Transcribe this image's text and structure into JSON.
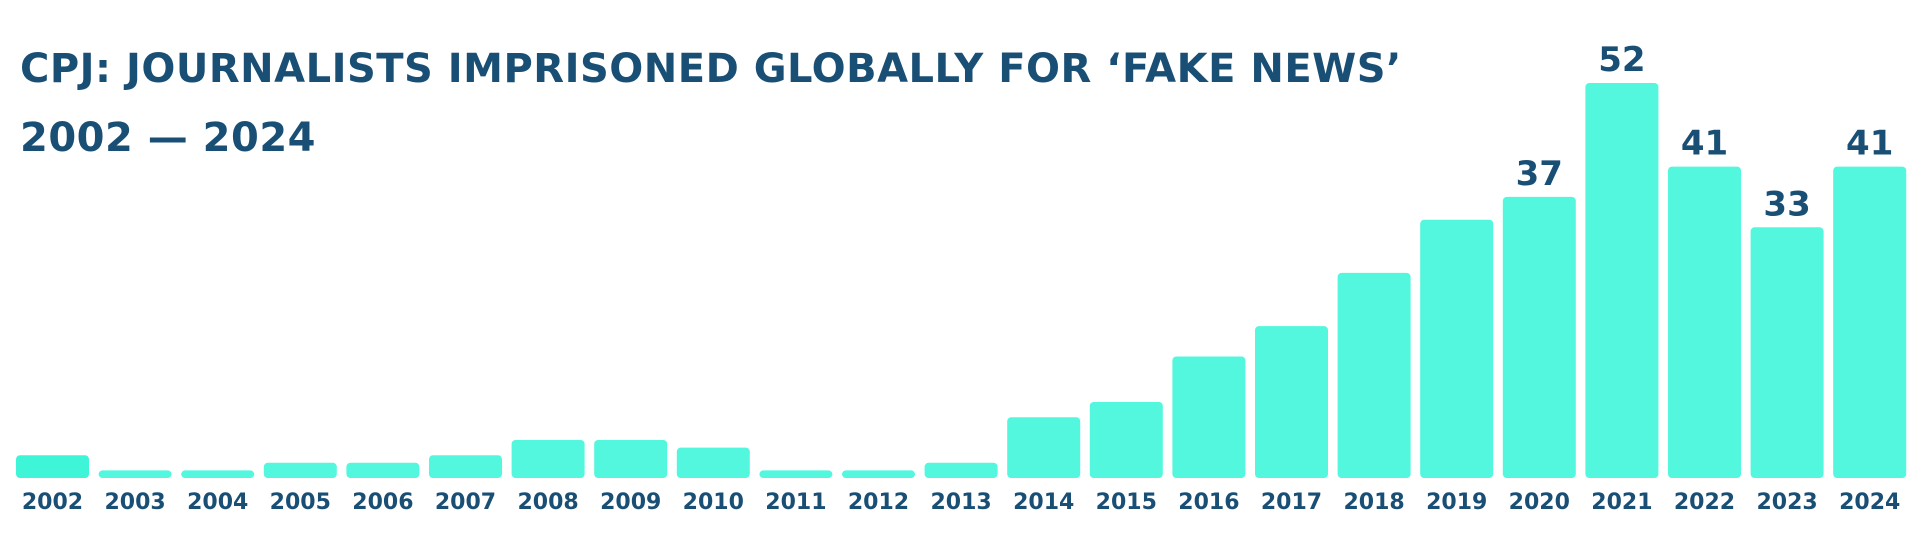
{
  "chart_data": {
    "type": "bar",
    "title": "CPJ: JOURNALISTS IMPRISONED GLOBALLY FOR ‘FAKE NEWS’",
    "subtitle": "2002 — 2024",
    "xlabel": "",
    "ylabel": "",
    "categories": [
      "2002",
      "2003",
      "2004",
      "2005",
      "2006",
      "2007",
      "2008",
      "2009",
      "2010",
      "2011",
      "2012",
      "2013",
      "2014",
      "2015",
      "2016",
      "2017",
      "2018",
      "2019",
      "2020",
      "2021",
      "2022",
      "2023",
      "2024"
    ],
    "values": [
      3,
      1,
      1,
      2,
      2,
      3,
      5,
      5,
      4,
      1,
      1,
      2,
      8,
      10,
      16,
      20,
      27,
      34,
      37,
      52,
      41,
      33,
      41
    ],
    "data_labels": [
      null,
      null,
      null,
      null,
      null,
      null,
      null,
      null,
      null,
      null,
      null,
      null,
      null,
      null,
      null,
      null,
      null,
      null,
      "37",
      "52",
      "41",
      "33",
      "41"
    ],
    "ylim": [
      0,
      52
    ],
    "grid": false,
    "colors": {
      "bar": "#52f7dd",
      "first_bar": "#3ff5d8",
      "text": "#1a4f75"
    }
  }
}
